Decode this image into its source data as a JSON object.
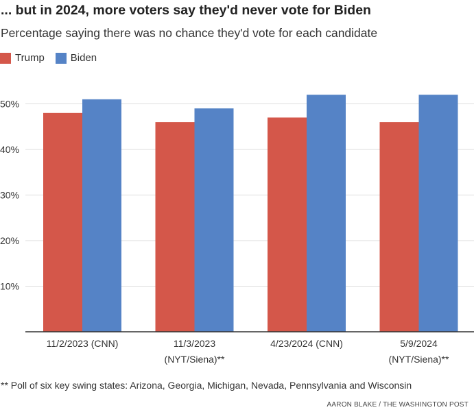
{
  "title": "... but in 2024, more voters say they'd never vote for Biden",
  "subtitle": "Percentage saying there was no chance they'd vote for each candidate",
  "footnote": "** Poll of six key swing states: Arizona, Georgia, Michigan, Nevada, Pennsylvania and Wisconsin",
  "credit": "AARON BLAKE / THE WASHINGTON POST",
  "colors": {
    "trump": "#d4574a",
    "biden": "#5583c6",
    "grid": "#dddddd",
    "axis": "#333333"
  },
  "chart_data": {
    "type": "bar",
    "categories": [
      [
        "11/2/2023 (CNN)"
      ],
      [
        "11/3/2023",
        "(NYT/Siena)**"
      ],
      [
        "4/23/2024 (CNN)"
      ],
      [
        "5/9/2024",
        "(NYT/Siena)**"
      ]
    ],
    "series": [
      {
        "name": "Trump",
        "values": [
          48,
          46,
          47,
          46
        ]
      },
      {
        "name": "Biden",
        "values": [
          51,
          49,
          52,
          52
        ]
      }
    ],
    "yticks": [
      "10%",
      "20%",
      "30%",
      "40%",
      "50%"
    ],
    "ylim": [
      0,
      55
    ],
    "grid": true,
    "legend": "top-left",
    "xlabel": "",
    "ylabel": ""
  }
}
